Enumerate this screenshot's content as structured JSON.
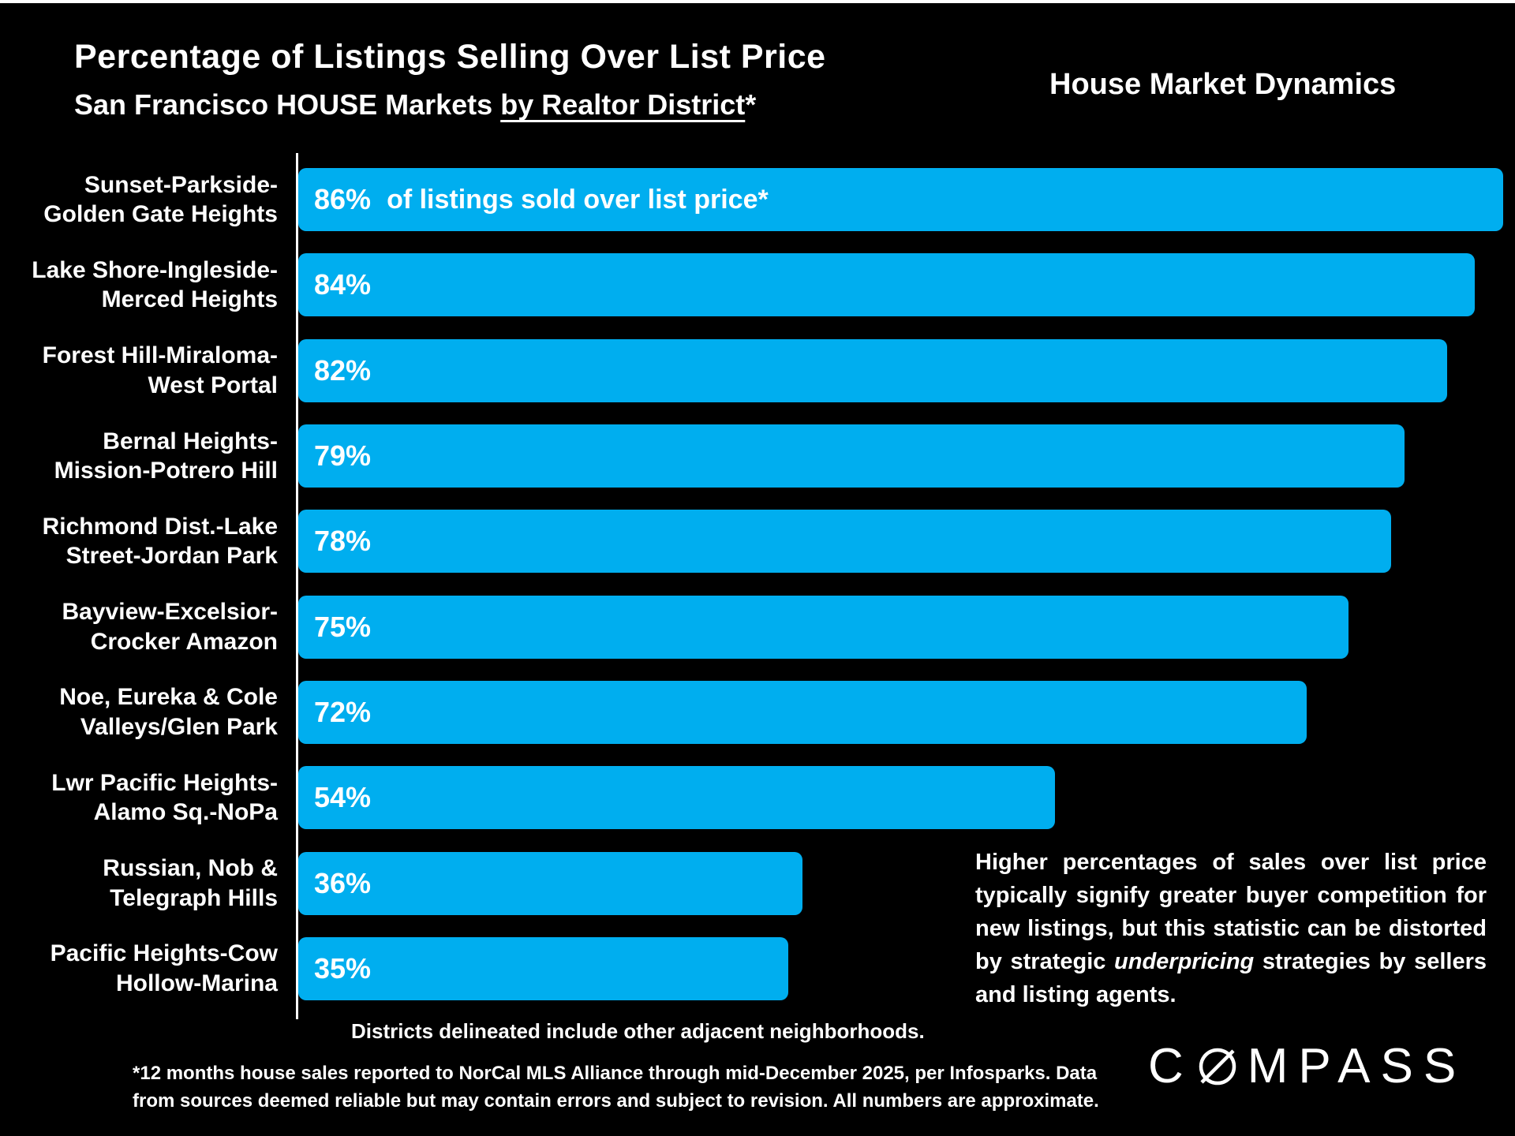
{
  "header": {
    "title": "Percentage of Listings Selling Over List Price",
    "subtitle_prefix": "San Francisco HOUSE Markets ",
    "subtitle_underlined": "by Realtor District",
    "subtitle_suffix": "*",
    "right_title": "House Market Dynamics"
  },
  "chart_data": {
    "type": "bar",
    "orientation": "horizontal",
    "title": "Percentage of Listings Selling Over List Price",
    "subtitle": "San Francisco HOUSE Markets by Realtor District*",
    "xlabel": "",
    "ylabel": "",
    "xlim": [
      0,
      100
    ],
    "value_suffix": "%",
    "grid": false,
    "bar_color": "#00AEEF",
    "first_bar_note": "of listings sold over list price*",
    "categories": [
      "Sunset-Parkside-Golden Gate Heights",
      "Lake Shore-Ingleside-Merced Heights",
      "Forest Hill-Miraloma-West Portal",
      "Bernal Heights-Mission-Potrero Hill",
      "Richmond Dist.-Lake Street-Jordan Park",
      "Bayview-Excelsior-Crocker Amazon",
      "Noe, Eureka & Cole Valleys/Glen Park",
      "Lwr Pacific Heights-Alamo Sq.-NoPa",
      "Russian, Nob & Telegraph Hills",
      "Pacific Heights-Cow Hollow-Marina"
    ],
    "category_lines": [
      [
        "Sunset-Parkside-",
        "Golden Gate Heights"
      ],
      [
        "Lake Shore-Ingleside-",
        "Merced Heights"
      ],
      [
        "Forest Hill-Miraloma-",
        "West Portal"
      ],
      [
        "Bernal Heights-",
        "Mission-Potrero Hill"
      ],
      [
        "Richmond Dist.-Lake",
        "Street-Jordan Park"
      ],
      [
        "Bayview-Excelsior-",
        "Crocker Amazon"
      ],
      [
        "Noe, Eureka & Cole",
        "Valleys/Glen Park"
      ],
      [
        "Lwr Pacific Heights-",
        "Alamo Sq.-NoPa"
      ],
      [
        "Russian, Nob &",
        "Telegraph Hills"
      ],
      [
        "Pacific Heights-Cow",
        "Hollow-Marina"
      ]
    ],
    "values": [
      86,
      84,
      82,
      79,
      78,
      75,
      72,
      54,
      36,
      35
    ]
  },
  "annotation": {
    "before": "Higher percentages of sales over list price typically signify greater buyer competition for new listings, but this statistic can be distorted by strategic ",
    "italic": "underpricing",
    "after": " strategies by sellers and listing agents."
  },
  "notes": {
    "districts": "Districts delineated include other adjacent neighborhoods.",
    "footnote_lines": [
      "*12 months house sales reported to NorCal MLS Alliance through mid-December 2025, per Infosparks. Data",
      "from sources deemed reliable but may contain errors and subject to revision. All numbers are approximate."
    ]
  },
  "logo": {
    "full": "COMPASS",
    "prefix": "C",
    "suffix": "MPASS"
  }
}
